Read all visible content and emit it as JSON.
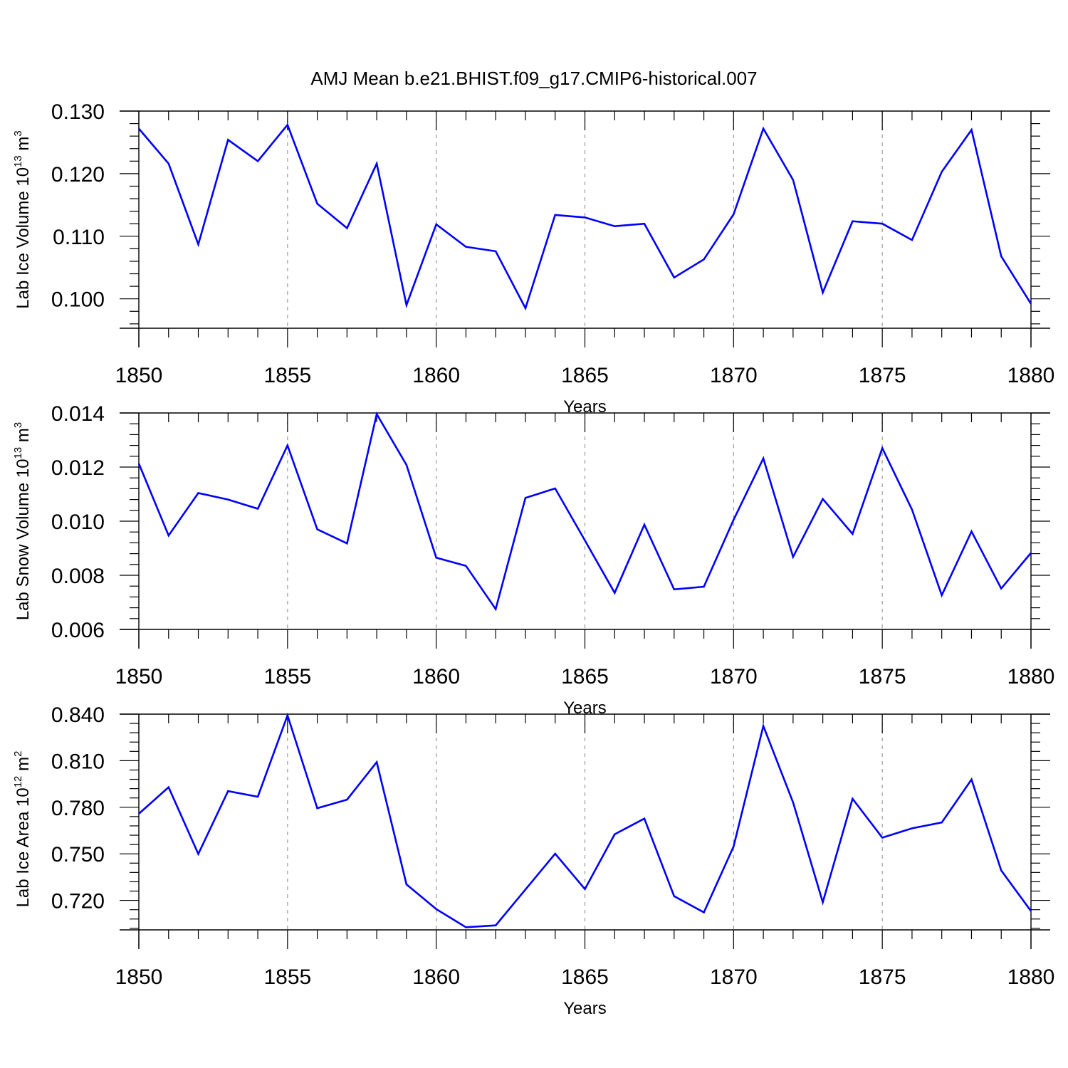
{
  "title": "AMJ Mean b.e21.BHIST.f09_g17.CMIP6-historical.007",
  "colors": {
    "series": "#0000ff",
    "axis": "#000000",
    "grid": "#9a9a9a"
  },
  "chart_data": [
    {
      "type": "line",
      "xlabel": "Years",
      "ylabel": {
        "prefix": "Lab Ice Volume 10",
        "exp": "13",
        "unit": " m",
        "unit_exp": "3"
      },
      "xlim": [
        1850,
        1880
      ],
      "ylim": [
        0.0953,
        0.13
      ],
      "x_ticks": [
        1850,
        1855,
        1860,
        1865,
        1870,
        1875,
        1880
      ],
      "x_tick_labels": [
        "1850",
        "1855",
        "1860",
        "1865",
        "1870",
        "1875",
        "1880"
      ],
      "y_ticks": [
        0.1,
        0.11,
        0.12,
        0.13
      ],
      "y_tick_labels": [
        "0.100",
        "0.110",
        "0.120",
        "0.130"
      ],
      "grid": "dashed vertical at major x ticks",
      "series": [
        {
          "x": [
            1850,
            1851,
            1852,
            1853,
            1854,
            1855,
            1856,
            1857,
            1858,
            1859,
            1860,
            1861,
            1862,
            1863,
            1864,
            1865,
            1866,
            1867,
            1868,
            1869,
            1870,
            1871,
            1872,
            1873,
            1874,
            1875,
            1876,
            1877,
            1878,
            1879,
            1880
          ],
          "values": [
            0.1272,
            0.1216,
            0.1087,
            0.1254,
            0.122,
            0.1278,
            0.1152,
            0.1113,
            0.1216,
            0.099,
            0.1119,
            0.1083,
            0.1076,
            0.0985,
            0.1134,
            0.113,
            0.1116,
            0.112,
            0.1034,
            0.1063,
            0.1135,
            0.1272,
            0.119,
            0.101,
            0.1124,
            0.112,
            0.1094,
            0.1203,
            0.127,
            0.1068,
            0.0992
          ]
        }
      ]
    },
    {
      "type": "line",
      "xlabel": "Years",
      "ylabel": {
        "prefix": "Lab Snow Volume 10",
        "exp": "13",
        "unit": " m",
        "unit_exp": "3"
      },
      "xlim": [
        1850,
        1880
      ],
      "ylim": [
        0.006,
        0.014
      ],
      "x_ticks": [
        1850,
        1855,
        1860,
        1865,
        1870,
        1875,
        1880
      ],
      "x_tick_labels": [
        "1850",
        "1855",
        "1860",
        "1865",
        "1870",
        "1875",
        "1880"
      ],
      "y_ticks": [
        0.006,
        0.008,
        0.01,
        0.012,
        0.014
      ],
      "y_tick_labels": [
        "0.006",
        "0.008",
        "0.010",
        "0.012",
        "0.014"
      ],
      "grid": "dashed vertical at major x ticks",
      "series": [
        {
          "x": [
            1850,
            1851,
            1852,
            1853,
            1854,
            1855,
            1856,
            1857,
            1858,
            1859,
            1860,
            1861,
            1862,
            1863,
            1864,
            1865,
            1866,
            1867,
            1868,
            1869,
            1870,
            1871,
            1872,
            1873,
            1874,
            1875,
            1876,
            1877,
            1878,
            1879,
            1880
          ],
          "values": [
            0.01213,
            0.00947,
            0.01104,
            0.0108,
            0.01046,
            0.0128,
            0.0097,
            0.00918,
            0.01396,
            0.01208,
            0.00865,
            0.00835,
            0.00675,
            0.01086,
            0.01121,
            0.00929,
            0.00735,
            0.00987,
            0.00748,
            0.00758,
            0.01005,
            0.01232,
            0.00868,
            0.01082,
            0.00953,
            0.0127,
            0.01043,
            0.00726,
            0.00962,
            0.00751,
            0.00883
          ]
        }
      ]
    },
    {
      "type": "line",
      "xlabel": "Years",
      "ylabel": {
        "prefix": "Lab Ice Area 10",
        "exp": "12",
        "unit": " m",
        "unit_exp": "2"
      },
      "xlim": [
        1850,
        1880
      ],
      "ylim": [
        0.701,
        0.84
      ],
      "x_ticks": [
        1850,
        1855,
        1860,
        1865,
        1870,
        1875,
        1880
      ],
      "x_tick_labels": [
        "1850",
        "1855",
        "1860",
        "1865",
        "1870",
        "1875",
        "1880"
      ],
      "y_ticks": [
        0.72,
        0.75,
        0.78,
        0.81,
        0.84
      ],
      "y_tick_labels": [
        "0.720",
        "0.750",
        "0.780",
        "0.810",
        "0.840"
      ],
      "grid": "dashed vertical at major x ticks",
      "series": [
        {
          "x": [
            1850,
            1851,
            1852,
            1853,
            1854,
            1855,
            1856,
            1857,
            1858,
            1859,
            1860,
            1861,
            1862,
            1863,
            1864,
            1865,
            1866,
            1867,
            1868,
            1869,
            1870,
            1871,
            1872,
            1873,
            1874,
            1875,
            1876,
            1877,
            1878,
            1879,
            1880
          ],
          "values": [
            0.7758,
            0.7929,
            0.7499,
            0.7904,
            0.7868,
            0.8392,
            0.7794,
            0.7849,
            0.8091,
            0.7303,
            0.7144,
            0.7027,
            0.7039,
            0.727,
            0.7501,
            0.7273,
            0.7626,
            0.7727,
            0.7227,
            0.7123,
            0.7547,
            0.8324,
            0.7831,
            0.7188,
            0.7855,
            0.7604,
            0.7664,
            0.7702,
            0.7979,
            0.7393,
            0.7131
          ]
        }
      ]
    }
  ]
}
